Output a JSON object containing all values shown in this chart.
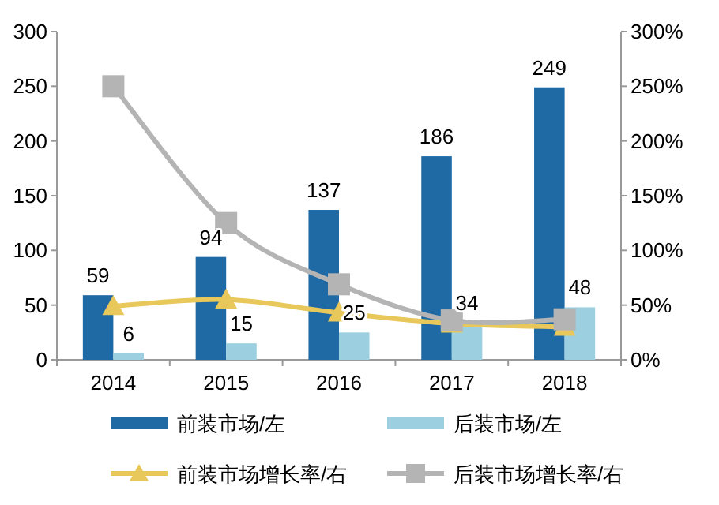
{
  "chart_data": {
    "type": "bar",
    "categories": [
      "2014",
      "2015",
      "2016",
      "2017",
      "2018"
    ],
    "series": [
      {
        "name": "前装市场/左",
        "color": "#1f6aa5",
        "values": [
          59,
          94,
          137,
          186,
          249
        ],
        "value_labels": [
          "59",
          "94",
          "137",
          "186",
          "249"
        ]
      },
      {
        "name": "后装市场/左",
        "color": "#9ccfe0",
        "values": [
          6,
          15,
          25,
          34,
          48
        ],
        "value_labels": [
          "6",
          "15",
          "25",
          "34",
          "48"
        ]
      },
      {
        "name": "前装市场增长率/右",
        "type": "line",
        "axis": "y2",
        "marker": "triangle",
        "color": "#e8c85a",
        "values": [
          49,
          55,
          43,
          33,
          30
        ]
      },
      {
        "name": "后装市场增长率/右",
        "type": "line",
        "axis": "y2",
        "marker": "square",
        "color": "#b4b4b4",
        "values": [
          250,
          125,
          69,
          36,
          37
        ]
      }
    ],
    "ylim": [
      0,
      300
    ],
    "yticks": [
      0,
      50,
      100,
      150,
      200,
      250,
      300
    ],
    "y2lim": [
      0,
      300
    ],
    "y2ticks": [
      {
        "value": 0,
        "label": "0%"
      },
      {
        "value": 50,
        "label": "50%"
      },
      {
        "value": 100,
        "label": "100%"
      },
      {
        "value": 150,
        "label": "150%"
      },
      {
        "value": 200,
        "label": "200%"
      },
      {
        "value": 250,
        "label": "250%"
      },
      {
        "value": 300,
        "label": "300%"
      }
    ],
    "grid": false,
    "legend": "bottom"
  }
}
